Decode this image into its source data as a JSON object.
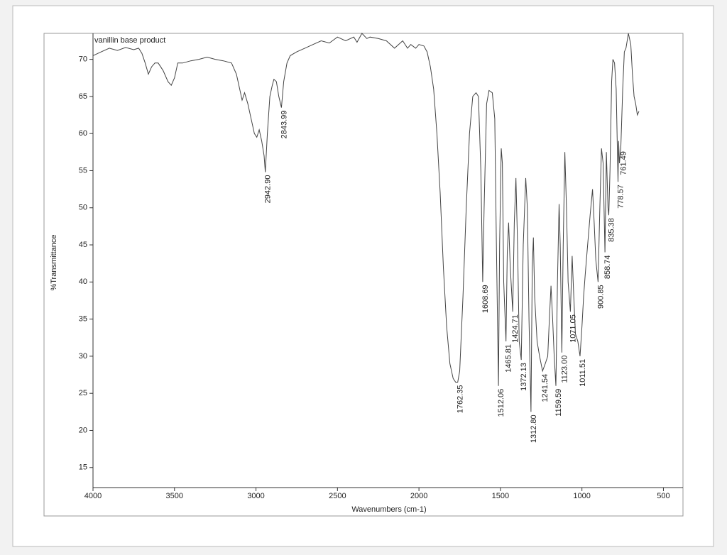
{
  "chart_data": {
    "type": "line",
    "title": "vanillin base product",
    "x_label": "Wavenumbers (cm-1)",
    "y_label": "%Transmittance",
    "color": "#444444",
    "xlim": [
      4000,
      380
    ],
    "ylim": [
      12.3,
      73.5
    ],
    "xticks": [
      4000,
      3500,
      3000,
      2500,
      2000,
      1500,
      1000,
      500
    ],
    "yticks": [
      15,
      20,
      25,
      30,
      35,
      40,
      45,
      50,
      55,
      60,
      65,
      70
    ],
    "x": [
      4000,
      3950,
      3900,
      3850,
      3800,
      3750,
      3720,
      3700,
      3680,
      3660,
      3640,
      3620,
      3600,
      3570,
      3540,
      3520,
      3500,
      3480,
      3450,
      3400,
      3350,
      3300,
      3250,
      3200,
      3150,
      3120,
      3100,
      3085,
      3070,
      3050,
      3030,
      3010,
      2995,
      2980,
      2965,
      2950,
      2942.9,
      2930,
      2915,
      2900,
      2890,
      2875,
      2860,
      2844,
      2830,
      2810,
      2790,
      2750,
      2700,
      2650,
      2600,
      2550,
      2500,
      2450,
      2400,
      2380,
      2350,
      2320,
      2300,
      2250,
      2200,
      2150,
      2100,
      2070,
      2050,
      2020,
      2000,
      1970,
      1950,
      1930,
      1910,
      1890,
      1870,
      1850,
      1830,
      1810,
      1790,
      1775,
      1762.35,
      1750,
      1730,
      1710,
      1690,
      1670,
      1650,
      1635,
      1620,
      1608.69,
      1600,
      1585,
      1570,
      1550,
      1535,
      1525,
      1512.06,
      1505,
      1495,
      1488,
      1480,
      1465.81,
      1458,
      1450,
      1440,
      1424.71,
      1415,
      1405,
      1395,
      1385,
      1372.13,
      1360,
      1345,
      1335,
      1325,
      1312.8,
      1305,
      1298,
      1290,
      1275,
      1260,
      1241.54,
      1225,
      1210,
      1200,
      1190,
      1180,
      1170,
      1159.59,
      1150,
      1140,
      1133,
      1123,
      1115,
      1105,
      1095,
      1085,
      1071.05,
      1060,
      1050,
      1040,
      1025,
      1011.51,
      1000,
      990,
      980,
      965,
      950,
      935,
      925,
      915,
      900.85,
      890,
      880,
      870,
      858.74,
      850,
      840,
      835.38,
      828,
      818,
      810,
      800,
      790,
      778.57,
      775,
      770,
      761.49,
      750,
      740,
      730,
      715,
      700,
      690,
      680,
      670,
      660,
      650
    ],
    "values": [
      70.5,
      71,
      71.5,
      71.2,
      71.6,
      71.3,
      71.5,
      70.8,
      69.5,
      68,
      69,
      69.5,
      69.5,
      68.5,
      67,
      66.5,
      67.5,
      69.5,
      69.5,
      69.8,
      70,
      70.3,
      70,
      69.8,
      69.5,
      68,
      66,
      64.5,
      65.5,
      64,
      62,
      60,
      59.5,
      60.5,
      59,
      57,
      54.8,
      60,
      65,
      66.5,
      67.3,
      67,
      65,
      63.5,
      67,
      69.5,
      70.5,
      71,
      71.5,
      72,
      72.5,
      72.2,
      73,
      72.5,
      73,
      72.3,
      73.5,
      72.8,
      73,
      72.8,
      72.5,
      71.5,
      72.5,
      71.5,
      72,
      71.5,
      72,
      71.8,
      71,
      69,
      66,
      60,
      52,
      42,
      34,
      29,
      27,
      26.5,
      26.5,
      28,
      38,
      50,
      60,
      65,
      65.5,
      65,
      55,
      40,
      50,
      64,
      65.8,
      65.5,
      62,
      45,
      26,
      45,
      58,
      56,
      40,
      32,
      44,
      48,
      42,
      36,
      48,
      54,
      45,
      32,
      29.5,
      45,
      54,
      50,
      35,
      22.5,
      42,
      46,
      38,
      32,
      30,
      28,
      29,
      30,
      35,
      39.5,
      35,
      30,
      26,
      40,
      50.5,
      45,
      30.5,
      45,
      57.5,
      50,
      40,
      36,
      43.5,
      38,
      33,
      32,
      30,
      34,
      38,
      41,
      45,
      49,
      52.5,
      48,
      43,
      40,
      50,
      58,
      56,
      44,
      57.5,
      50,
      49,
      55,
      67,
      70,
      69.5,
      66,
      53.5,
      59,
      56,
      58,
      66,
      71,
      71.5,
      73.5,
      72,
      68,
      65,
      64,
      62.5,
      63
    ],
    "peaks": [
      {
        "x": 2942.9,
        "y": 54.8,
        "label": "2942.90"
      },
      {
        "x": 2843.99,
        "y": 63.5,
        "label": "2843.99"
      },
      {
        "x": 1762.35,
        "y": 26.5,
        "label": "1762.35"
      },
      {
        "x": 1608.69,
        "y": 40,
        "label": "1608.69"
      },
      {
        "x": 1512.06,
        "y": 26,
        "label": "1512.06"
      },
      {
        "x": 1465.81,
        "y": 32,
        "label": "1465.81"
      },
      {
        "x": 1424.71,
        "y": 36,
        "label": "1424.71"
      },
      {
        "x": 1372.13,
        "y": 29.5,
        "label": "1372.13"
      },
      {
        "x": 1312.8,
        "y": 22.5,
        "label": "1312.80"
      },
      {
        "x": 1241.54,
        "y": 28,
        "label": "1241.54"
      },
      {
        "x": 1159.59,
        "y": 26,
        "label": "1159.59"
      },
      {
        "x": 1123.0,
        "y": 30.5,
        "label": "1123.00"
      },
      {
        "x": 1071.05,
        "y": 36,
        "label": "1071.05"
      },
      {
        "x": 1011.51,
        "y": 30,
        "label": "1011.51"
      },
      {
        "x": 900.85,
        "y": 40,
        "label": "900.85"
      },
      {
        "x": 858.74,
        "y": 44,
        "label": "858.74"
      },
      {
        "x": 835.38,
        "y": 49,
        "label": "835.38"
      },
      {
        "x": 778.57,
        "y": 53.5,
        "label": "778.57"
      },
      {
        "x": 761.49,
        "y": 58,
        "label": "761.49"
      }
    ]
  }
}
